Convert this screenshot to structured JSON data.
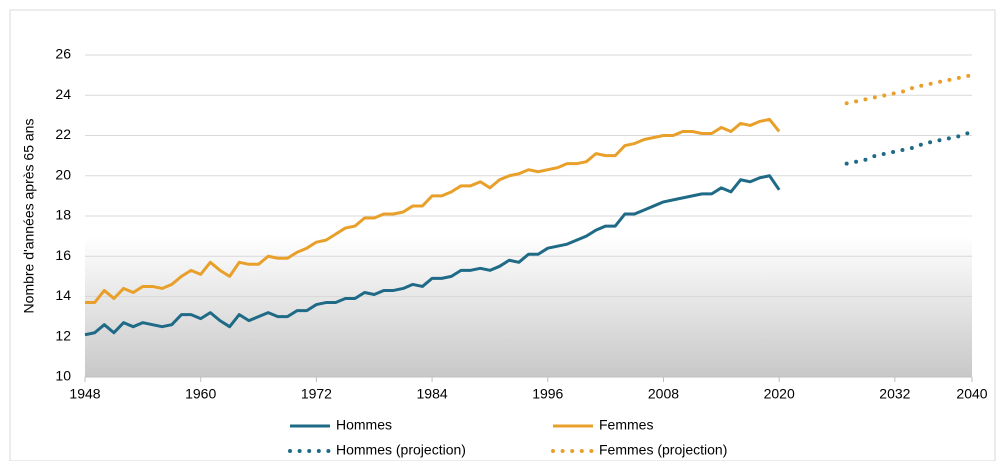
{
  "chart_data": {
    "type": "line",
    "y_label": "Nombre d'années après 65 ans",
    "xlim": [
      1948,
      2040
    ],
    "xticks": [
      1948,
      1960,
      1972,
      1984,
      1996,
      2008,
      2020,
      2032,
      2040
    ],
    "ylim": [
      10,
      26
    ],
    "yticks": [
      10,
      12,
      14,
      16,
      18,
      20,
      22,
      24,
      26
    ],
    "grid": true,
    "series": [
      {
        "name": "Hommes",
        "color": "#1f6a86",
        "style": "solid",
        "x": [
          1948,
          1949,
          1950,
          1951,
          1952,
          1953,
          1954,
          1955,
          1956,
          1957,
          1958,
          1959,
          1960,
          1961,
          1962,
          1963,
          1964,
          1965,
          1966,
          1967,
          1968,
          1969,
          1970,
          1971,
          1972,
          1973,
          1974,
          1975,
          1976,
          1977,
          1978,
          1979,
          1980,
          1981,
          1982,
          1983,
          1984,
          1985,
          1986,
          1987,
          1988,
          1989,
          1990,
          1991,
          1992,
          1993,
          1994,
          1995,
          1996,
          1997,
          1998,
          1999,
          2000,
          2001,
          2002,
          2003,
          2004,
          2005,
          2006,
          2007,
          2008,
          2009,
          2010,
          2011,
          2012,
          2013,
          2014,
          2015,
          2016,
          2017,
          2018,
          2019,
          2020
        ],
        "values": [
          12.1,
          12.2,
          12.6,
          12.2,
          12.7,
          12.5,
          12.7,
          12.6,
          12.5,
          12.6,
          13.1,
          13.1,
          12.9,
          13.2,
          12.8,
          12.5,
          13.1,
          12.8,
          13.0,
          13.2,
          13.0,
          13.0,
          13.3,
          13.3,
          13.6,
          13.7,
          13.7,
          13.9,
          13.9,
          14.2,
          14.1,
          14.3,
          14.3,
          14.4,
          14.6,
          14.5,
          14.9,
          14.9,
          15.0,
          15.3,
          15.3,
          15.4,
          15.3,
          15.5,
          15.8,
          15.7,
          16.1,
          16.1,
          16.4,
          16.5,
          16.6,
          16.8,
          17.0,
          17.3,
          17.5,
          17.5,
          18.1,
          18.1,
          18.3,
          18.5,
          18.7,
          18.8,
          18.9,
          19.0,
          19.1,
          19.1,
          19.4,
          19.2,
          19.8,
          19.7,
          19.9,
          20.0,
          19.3
        ]
      },
      {
        "name": "Femmes",
        "color": "#e8a02a",
        "style": "solid",
        "x": [
          1948,
          1949,
          1950,
          1951,
          1952,
          1953,
          1954,
          1955,
          1956,
          1957,
          1958,
          1959,
          1960,
          1961,
          1962,
          1963,
          1964,
          1965,
          1966,
          1967,
          1968,
          1969,
          1970,
          1971,
          1972,
          1973,
          1974,
          1975,
          1976,
          1977,
          1978,
          1979,
          1980,
          1981,
          1982,
          1983,
          1984,
          1985,
          1986,
          1987,
          1988,
          1989,
          1990,
          1991,
          1992,
          1993,
          1994,
          1995,
          1996,
          1997,
          1998,
          1999,
          2000,
          2001,
          2002,
          2003,
          2004,
          2005,
          2006,
          2007,
          2008,
          2009,
          2010,
          2011,
          2012,
          2013,
          2014,
          2015,
          2016,
          2017,
          2018,
          2019,
          2020
        ],
        "values": [
          13.7,
          13.7,
          14.3,
          13.9,
          14.4,
          14.2,
          14.5,
          14.5,
          14.4,
          14.6,
          15.0,
          15.3,
          15.1,
          15.7,
          15.3,
          15.0,
          15.7,
          15.6,
          15.6,
          16.0,
          15.9,
          15.9,
          16.2,
          16.4,
          16.7,
          16.8,
          17.1,
          17.4,
          17.5,
          17.9,
          17.9,
          18.1,
          18.1,
          18.2,
          18.5,
          18.5,
          19.0,
          19.0,
          19.2,
          19.5,
          19.5,
          19.7,
          19.4,
          19.8,
          20.0,
          20.1,
          20.3,
          20.2,
          20.3,
          20.4,
          20.6,
          20.6,
          20.7,
          21.1,
          21.0,
          21.0,
          21.5,
          21.6,
          21.8,
          21.9,
          22.0,
          22.0,
          22.2,
          22.2,
          22.1,
          22.1,
          22.4,
          22.2,
          22.6,
          22.5,
          22.7,
          22.8,
          22.2
        ]
      },
      {
        "name": "Hommes (projection)",
        "color": "#1f6a86",
        "style": "dotted",
        "x": [
          2027,
          2028,
          2029,
          2030,
          2031,
          2032,
          2033,
          2034,
          2035,
          2036,
          2037,
          2038,
          2039,
          2040
        ],
        "values": [
          20.6,
          20.7,
          20.8,
          21.0,
          21.1,
          21.2,
          21.3,
          21.4,
          21.6,
          21.7,
          21.8,
          21.9,
          22.0,
          22.2
        ]
      },
      {
        "name": "Femmes (projection)",
        "color": "#e8a02a",
        "style": "dotted",
        "x": [
          2027,
          2028,
          2029,
          2030,
          2031,
          2032,
          2033,
          2034,
          2035,
          2036,
          2037,
          2038,
          2039,
          2040
        ],
        "values": [
          23.6,
          23.7,
          23.8,
          23.9,
          24.0,
          24.1,
          24.2,
          24.4,
          24.5,
          24.6,
          24.7,
          24.8,
          24.9,
          25.0
        ]
      }
    ]
  }
}
